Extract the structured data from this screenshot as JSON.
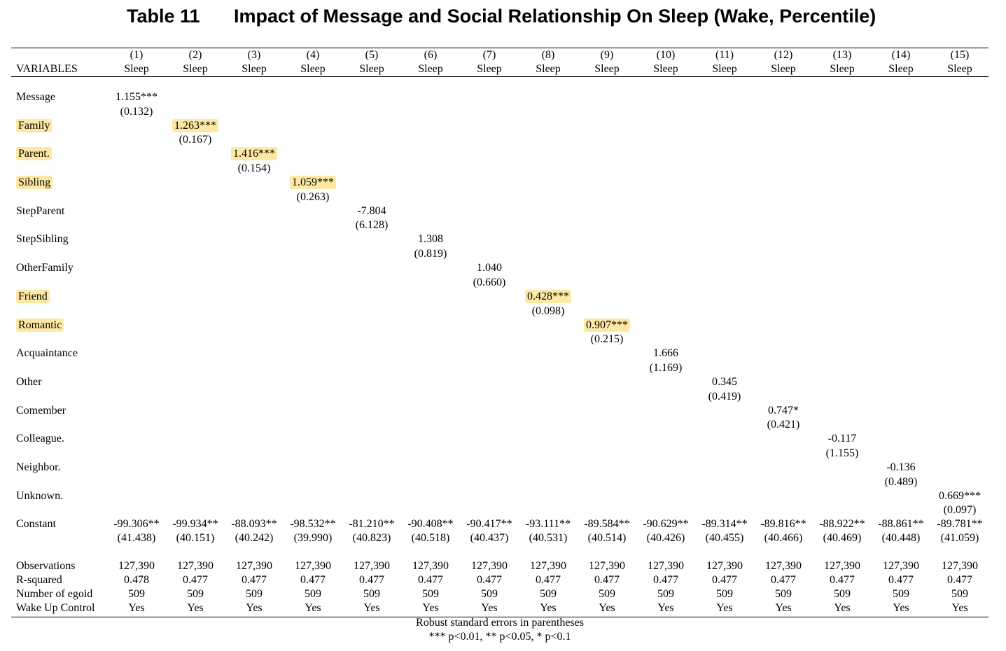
{
  "title": {
    "number": "Table 11",
    "text": "Impact of Message and Social Relationship On Sleep (Wake, Percentile)"
  },
  "header": {
    "variables_label": "VARIABLES",
    "columns": [
      {
        "num": "(1)",
        "dep": "Sleep"
      },
      {
        "num": "(2)",
        "dep": "Sleep"
      },
      {
        "num": "(3)",
        "dep": "Sleep"
      },
      {
        "num": "(4)",
        "dep": "Sleep"
      },
      {
        "num": "(5)",
        "dep": "Sleep"
      },
      {
        "num": "(6)",
        "dep": "Sleep"
      },
      {
        "num": "(7)",
        "dep": "Sleep"
      },
      {
        "num": "(8)",
        "dep": "Sleep"
      },
      {
        "num": "(9)",
        "dep": "Sleep"
      },
      {
        "num": "(10)",
        "dep": "Sleep"
      },
      {
        "num": "(11)",
        "dep": "Sleep"
      },
      {
        "num": "(12)",
        "dep": "Sleep"
      },
      {
        "num": "(13)",
        "dep": "Sleep"
      },
      {
        "num": "(14)",
        "dep": "Sleep"
      },
      {
        "num": "(15)",
        "dep": "Sleep"
      }
    ]
  },
  "variables": [
    {
      "name": "Message",
      "col": 1,
      "coef": "1.155***",
      "se": "(0.132)",
      "highlight": false
    },
    {
      "name": "Family",
      "col": 2,
      "coef": "1.263***",
      "se": "(0.167)",
      "highlight": true
    },
    {
      "name": "Parent.",
      "col": 3,
      "coef": "1.416***",
      "se": "(0.154)",
      "highlight": true
    },
    {
      "name": "Sibling",
      "col": 4,
      "coef": "1.059***",
      "se": "(0.263)",
      "highlight": true
    },
    {
      "name": "StepParent",
      "col": 5,
      "coef": "-7.804",
      "se": "(6.128)",
      "highlight": false
    },
    {
      "name": "StepSibling",
      "col": 6,
      "coef": "1.308",
      "se": "(0.819)",
      "highlight": false
    },
    {
      "name": "OtherFamily",
      "col": 7,
      "coef": "1.040",
      "se": "(0.660)",
      "highlight": false
    },
    {
      "name": "Friend",
      "col": 8,
      "coef": "0.428***",
      "se": "(0.098)",
      "highlight": true
    },
    {
      "name": "Romantic",
      "col": 9,
      "coef": "0.907***",
      "se": "(0.215)",
      "highlight": true
    },
    {
      "name": "Acquaintance",
      "col": 10,
      "coef": "1.666",
      "se": "(1.169)",
      "highlight": false
    },
    {
      "name": "Other",
      "col": 11,
      "coef": "0.345",
      "se": "(0.419)",
      "highlight": false
    },
    {
      "name": "Comember",
      "col": 12,
      "coef": "0.747*",
      "se": "(0.421)",
      "highlight": false
    },
    {
      "name": "Colleague.",
      "col": 13,
      "coef": "-0.117",
      "se": "(1.155)",
      "highlight": false
    },
    {
      "name": "Neighbor.",
      "col": 14,
      "coef": "-0.136",
      "se": "(0.489)",
      "highlight": false
    },
    {
      "name": "Unknown.",
      "col": 15,
      "coef": "0.669***",
      "se": "(0.097)",
      "highlight": false
    }
  ],
  "constant": {
    "name": "Constant",
    "coefs": [
      "-99.306**",
      "-99.934**",
      "-88.093**",
      "-98.532**",
      "-81.210**",
      "-90.408**",
      "-90.417**",
      "-93.111**",
      "-89.584**",
      "-90.629**",
      "-89.314**",
      "-89.816**",
      "-88.922**",
      "-88.861**",
      "-89.781**"
    ],
    "ses": [
      "(41.438)",
      "(40.151)",
      "(40.242)",
      "(39.990)",
      "(40.823)",
      "(40.518)",
      "(40.437)",
      "(40.531)",
      "(40.514)",
      "(40.426)",
      "(40.455)",
      "(40.466)",
      "(40.469)",
      "(40.448)",
      "(41.059)"
    ]
  },
  "stats": [
    {
      "name": "Observations",
      "values": [
        "127,390",
        "127,390",
        "127,390",
        "127,390",
        "127,390",
        "127,390",
        "127,390",
        "127,390",
        "127,390",
        "127,390",
        "127,390",
        "127,390",
        "127,390",
        "127,390",
        "127,390"
      ]
    },
    {
      "name": "R-squared",
      "values": [
        "0.478",
        "0.477",
        "0.477",
        "0.477",
        "0.477",
        "0.477",
        "0.477",
        "0.477",
        "0.477",
        "0.477",
        "0.477",
        "0.477",
        "0.477",
        "0.477",
        "0.477"
      ]
    },
    {
      "name": "Number of egoid",
      "values": [
        "509",
        "509",
        "509",
        "509",
        "509",
        "509",
        "509",
        "509",
        "509",
        "509",
        "509",
        "509",
        "509",
        "509",
        "509"
      ]
    },
    {
      "name": "Wake Up Control",
      "values": [
        "Yes",
        "Yes",
        "Yes",
        "Yes",
        "Yes",
        "Yes",
        "Yes",
        "Yes",
        "Yes",
        "Yes",
        "Yes",
        "Yes",
        "Yes",
        "Yes",
        "Yes"
      ]
    }
  ],
  "notes": [
    "Robust standard errors in parentheses",
    "*** p<0.01, ** p<0.05, * p<0.1"
  ],
  "colors": {
    "highlight": "#fde9a4"
  }
}
